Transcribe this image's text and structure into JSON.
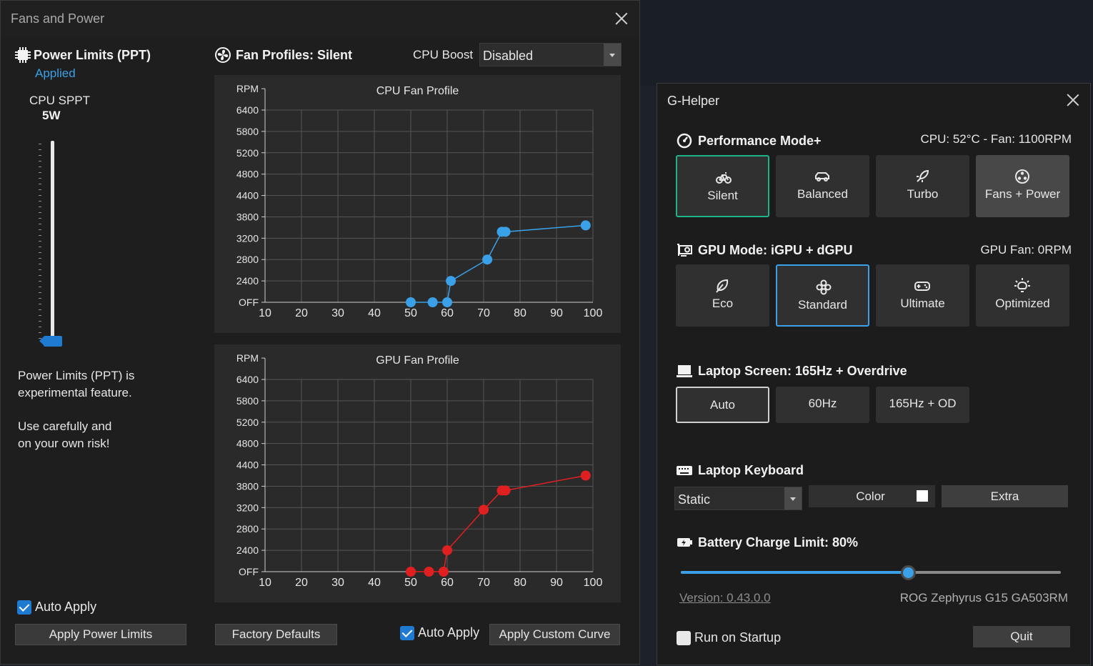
{
  "fans_window": {
    "title": "Fans and Power",
    "power": {
      "title": "Power Limits (PPT)",
      "status": "Applied",
      "sppt_label": "CPU SPPT",
      "sppt_value": "5W",
      "slider_fraction": 0.0,
      "note1_line1": "Power Limits (PPT) is",
      "note1_line2": "experimental feature.",
      "note2_line1": "Use carefully and",
      "note2_line2": "on your own risk!",
      "auto_apply_label": "Auto Apply",
      "auto_apply_checked": true,
      "apply_button": "Apply Power Limits"
    },
    "fan_profiles": {
      "title": "Fan Profiles: Silent",
      "cpu_boost_label": "CPU Boost",
      "cpu_boost_value": "Disabled",
      "factory_defaults": "Factory Defaults",
      "auto_apply_label": "Auto Apply",
      "auto_apply_checked": true,
      "apply_curve": "Apply Custom Curve"
    }
  },
  "chart_data": [
    {
      "type": "line",
      "title": "CPU Fan Profile",
      "ylabel": "RPM",
      "color": "#3aa0e8",
      "x_ticks": [
        10,
        20,
        30,
        40,
        50,
        60,
        70,
        80,
        90,
        100
      ],
      "y_ticks": [
        "OFF",
        "2400",
        "2800",
        "3200",
        "3800",
        "4400",
        "4800",
        "5200",
        "5800",
        "6400"
      ],
      "xlim": [
        10,
        100
      ],
      "x": [
        50,
        56,
        60,
        61,
        71,
        75,
        76,
        98
      ],
      "y": [
        0,
        0,
        0,
        1,
        2,
        3.3,
        3.3,
        3.6
      ]
    },
    {
      "type": "line",
      "title": "GPU Fan Profile",
      "ylabel": "RPM",
      "color": "#e02020",
      "x_ticks": [
        10,
        20,
        30,
        40,
        50,
        60,
        70,
        80,
        90,
        100
      ],
      "y_ticks": [
        "OFF",
        "2400",
        "2800",
        "3200",
        "3800",
        "4400",
        "4800",
        "5200",
        "5800",
        "6400"
      ],
      "xlim": [
        10,
        100
      ],
      "x": [
        50,
        55,
        59,
        60,
        70,
        75,
        76,
        98
      ],
      "y": [
        0,
        0,
        0,
        1,
        2.9,
        3.8,
        3.8,
        4.5
      ]
    }
  ],
  "ghelper": {
    "title": "G-Helper",
    "performance": {
      "title": "Performance Mode+",
      "status": "CPU: 52°C -  Fan: 1100RPM",
      "modes": [
        "Silent",
        "Balanced",
        "Turbo",
        "Fans + Power"
      ]
    },
    "gpu": {
      "title": "GPU Mode: iGPU + dGPU",
      "status": "GPU Fan: 0RPM",
      "modes": [
        "Eco",
        "Standard",
        "Ultimate",
        "Optimized"
      ]
    },
    "screen": {
      "title": "Laptop Screen: 165Hz + Overdrive",
      "modes": [
        "Auto",
        "60Hz",
        "165Hz + OD"
      ]
    },
    "keyboard": {
      "title": "Laptop Keyboard",
      "mode": "Static",
      "color_label": "Color",
      "color_value": "#ffffff",
      "extra_label": "Extra"
    },
    "battery": {
      "title": "Battery Charge Limit: 80%",
      "limit_percent": 80
    },
    "version": "Version: 0.43.0.0",
    "model": "ROG Zephyrus G15 GA503RM",
    "run_on_startup": "Run on Startup",
    "run_on_startup_checked": false,
    "quit": "Quit"
  }
}
